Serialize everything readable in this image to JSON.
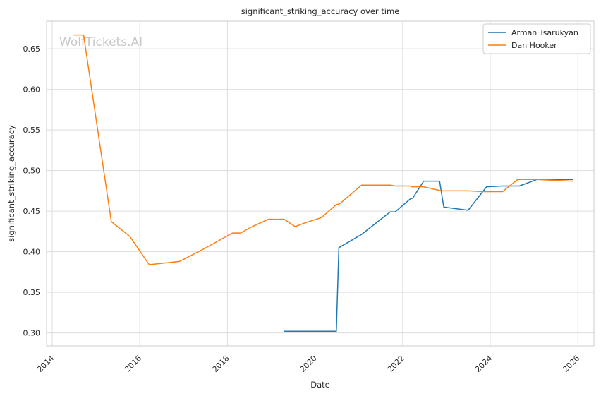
{
  "watermark": "WolfTickets.AI",
  "chart_data": {
    "type": "line",
    "title": "significant_striking_accuracy over time",
    "xlabel": "Date",
    "ylabel": "significant_striking_accuracy",
    "x_ticks": [
      "2014",
      "2016",
      "2018",
      "2020",
      "2022",
      "2024",
      "2026"
    ],
    "y_ticks": [
      "0.30",
      "0.35",
      "0.40",
      "0.45",
      "0.50",
      "0.55",
      "0.60",
      "0.65"
    ],
    "xlim": [
      "2013-11-15",
      "2026-05-15"
    ],
    "ylim": [
      0.284,
      0.684
    ],
    "grid": true,
    "legend_position": "top-right",
    "series": [
      {
        "name": "Arman Tsarukyan",
        "color": "#1f77b4",
        "points": [
          [
            "2019-04-20",
            0.302
          ],
          [
            "2020-06-27",
            0.302
          ],
          [
            "2020-07-18",
            0.405
          ],
          [
            "2021-01-20",
            0.421
          ],
          [
            "2021-09-18",
            0.449
          ],
          [
            "2021-10-30",
            0.449
          ],
          [
            "2022-03-05",
            0.465
          ],
          [
            "2022-03-26",
            0.466
          ],
          [
            "2022-06-25",
            0.487
          ],
          [
            "2022-11-05",
            0.487
          ],
          [
            "2022-12-10",
            0.455
          ],
          [
            "2023-07-01",
            0.451
          ],
          [
            "2023-12-02",
            0.48
          ],
          [
            "2024-04-13",
            0.481
          ],
          [
            "2024-08-31",
            0.481
          ],
          [
            "2025-01-25",
            0.489
          ],
          [
            "2025-11-22",
            0.489
          ]
        ]
      },
      {
        "name": "Dan Hooker",
        "color": "#ff7f0e",
        "points": [
          [
            "2014-06-28",
            0.667
          ],
          [
            "2014-09-20",
            0.667
          ],
          [
            "2015-05-09",
            0.437
          ],
          [
            "2015-10-10",
            0.419
          ],
          [
            "2016-03-20",
            0.384
          ],
          [
            "2016-11-27",
            0.388
          ],
          [
            "2017-06-25",
            0.404
          ],
          [
            "2018-02-11",
            0.423
          ],
          [
            "2018-04-21",
            0.423
          ],
          [
            "2018-07-14",
            0.43
          ],
          [
            "2018-12-08",
            0.44
          ],
          [
            "2019-04-20",
            0.44
          ],
          [
            "2019-07-20",
            0.431
          ],
          [
            "2019-09-28",
            0.435
          ],
          [
            "2020-02-23",
            0.442
          ],
          [
            "2020-06-27",
            0.458
          ],
          [
            "2020-07-25",
            0.459
          ],
          [
            "2021-01-23",
            0.482
          ],
          [
            "2021-09-25",
            0.482
          ],
          [
            "2021-10-30",
            0.481
          ],
          [
            "2022-03-05",
            0.481
          ],
          [
            "2022-03-19",
            0.48
          ],
          [
            "2022-06-25",
            0.48
          ],
          [
            "2022-11-19",
            0.475
          ],
          [
            "2023-07-01",
            0.475
          ],
          [
            "2023-11-11",
            0.474
          ],
          [
            "2024-04-13",
            0.474
          ],
          [
            "2024-08-17",
            0.489
          ],
          [
            "2025-01-25",
            0.489
          ],
          [
            "2025-11-22",
            0.487
          ]
        ]
      }
    ]
  }
}
